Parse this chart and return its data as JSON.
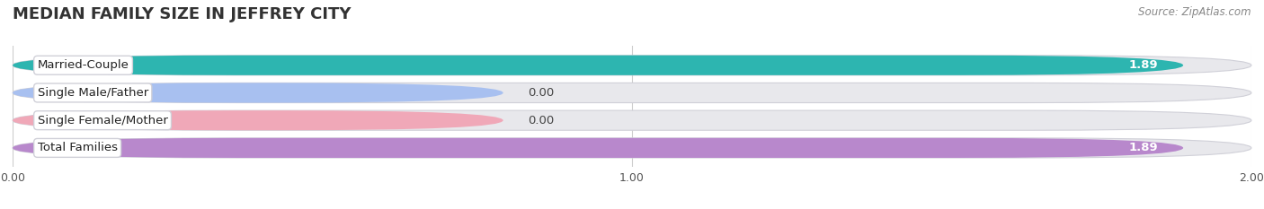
{
  "title": "MEDIAN FAMILY SIZE IN JEFFREY CITY",
  "source": "Source: ZipAtlas.com",
  "categories": [
    "Married-Couple",
    "Single Male/Father",
    "Single Female/Mother",
    "Total Families"
  ],
  "values": [
    1.89,
    0.0,
    0.0,
    1.89
  ],
  "bar_colors": [
    "#2db5b0",
    "#a8c0f0",
    "#f0a8b8",
    "#b888cc"
  ],
  "bar_bg_color": "#e8e8ec",
  "xlim_data": [
    0.0,
    2.0
  ],
  "xticks": [
    0.0,
    1.0,
    2.0
  ],
  "xtick_labels": [
    "0.00",
    "1.00",
    "2.00"
  ],
  "value_labels": [
    "1.89",
    "0.00",
    "0.00",
    "1.89"
  ],
  "background_color": "#ffffff",
  "bar_height": 0.72,
  "bar_gap": 0.28,
  "title_fontsize": 13,
  "label_fontsize": 9.5,
  "tick_fontsize": 9,
  "source_fontsize": 8.5
}
